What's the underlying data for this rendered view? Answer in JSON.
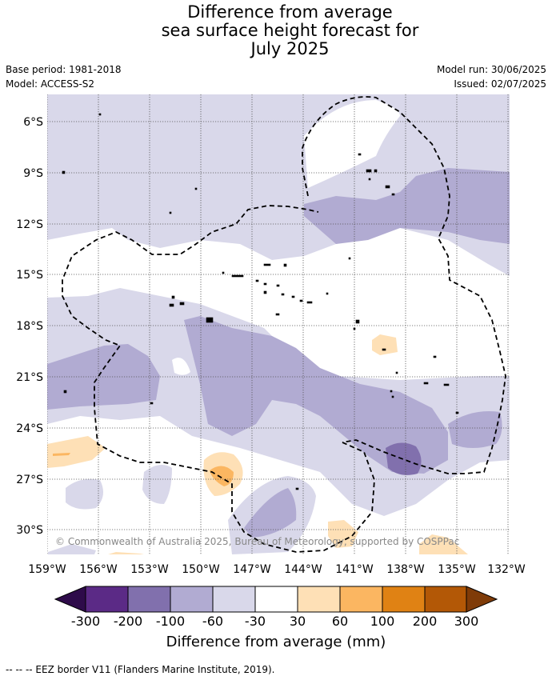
{
  "title": {
    "line1": "Difference from average",
    "line2": "sea surface height forecast for",
    "line3": "July 2025"
  },
  "meta": {
    "base_period": "Base period: 1981-2018",
    "model": "Model: ACCESS-S2",
    "model_run": "Model run: 30/06/2025",
    "issued": "Issued: 02/07/2025"
  },
  "map": {
    "lat_labels": [
      "6°S",
      "9°S",
      "12°S",
      "15°S",
      "18°S",
      "21°S",
      "24°S",
      "27°S",
      "30°S"
    ],
    "lon_labels": [
      "159°W",
      "156°W",
      "153°W",
      "150°W",
      "147°W",
      "144°W",
      "141°W",
      "138°W",
      "135°W",
      "132°W"
    ],
    "copyright": "© Commonwealth of Australia 2025, Bureau of Meteorology, supported by COSPPac"
  },
  "colorbar": {
    "ticks": [
      "-300",
      "-200",
      "-100",
      "-60",
      "-30",
      "30",
      "60",
      "100",
      "200",
      "300"
    ],
    "title": "Difference from average (mm)",
    "colors": {
      "lt_n300": "#2e0b4a",
      "n300_n200": "#5b2a86",
      "n200_n100": "#8170ad",
      "n100_n60": "#b1abd2",
      "n60_n30": "#d9d8ea",
      "n30_30": "#ffffff",
      "p30_60": "#fee0b6",
      "p60_100": "#fbb661",
      "p100_200": "#e08214",
      "p200_300": "#b35806",
      "gt_300": "#7f3b08"
    }
  },
  "footer": "--  --  -- EEZ border V11 (Flanders Marine Institute, 2019)."
}
